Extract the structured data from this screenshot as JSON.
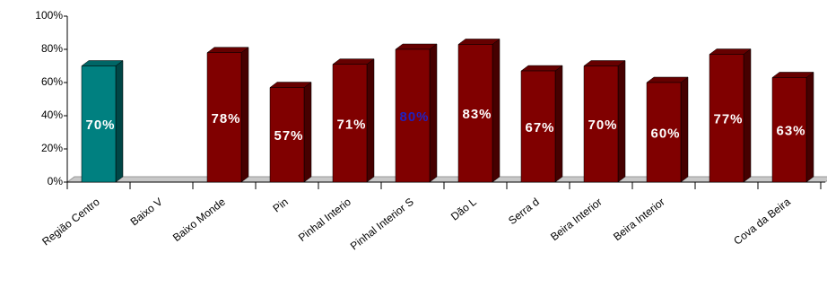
{
  "chart_data": {
    "type": "bar",
    "categories": [
      "Região Centro",
      "Baixo V",
      "Baixo Monde",
      "Pin",
      "Pinhal Interio",
      "Pinhal Interior S",
      "Dão L",
      "Serra d",
      "Beira Interior",
      "Beira Interior",
      null,
      "Cova da Beira"
    ],
    "values": [
      70,
      null,
      78,
      57,
      71,
      80,
      83,
      67,
      70,
      60,
      77,
      63
    ],
    "value_labels": [
      "70%",
      null,
      "78%",
      "57%",
      "71%",
      "80%",
      "83%",
      "67%",
      "70%",
      "60%",
      "77%",
      "63%"
    ],
    "colors": [
      "#008080",
      "#800000",
      "#800000",
      "#800000",
      "#800000",
      "#800000",
      "#800000",
      "#800000",
      "#800000",
      "#800000",
      "#800000",
      "#800000"
    ],
    "label_colors": [
      "#ffffff",
      "#ffffff",
      "#ffffff",
      "#ffffff",
      "#ffffff",
      "#2020c0",
      "#ffffff",
      "#ffffff",
      "#ffffff",
      "#ffffff",
      "#ffffff",
      "#ffffff"
    ],
    "ylim": [
      0,
      100
    ],
    "yticks": [
      {
        "value": 0,
        "label": "0%"
      },
      {
        "value": 20,
        "label": "20%"
      },
      {
        "value": 40,
        "label": "40%"
      },
      {
        "value": 60,
        "label": "60%"
      },
      {
        "value": 80,
        "label": "80%"
      },
      {
        "value": 100,
        "label": "100%"
      }
    ]
  }
}
